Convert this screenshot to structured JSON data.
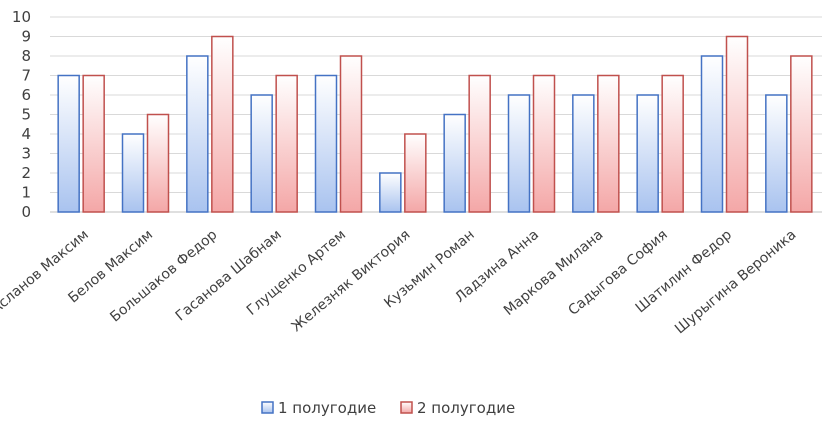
{
  "chart_data": {
    "type": "bar",
    "categories": [
      "Асланов Максим",
      "Белов Максим",
      "Большаков Федор",
      "Гасанова Шабнам",
      "Глущенко Артем",
      "Железняк Виктория",
      "Кузьмин Роман",
      "Ладзина Анна",
      "Маркова Милана",
      "Садыгова София",
      "Шатилин Федор",
      "Шурыгина Вероника"
    ],
    "series": [
      {
        "name": "1 полугодие",
        "values": [
          7,
          4,
          8,
          6,
          7,
          2,
          5,
          6,
          6,
          6,
          8,
          6
        ]
      },
      {
        "name": "2 полугодие",
        "values": [
          7,
          5,
          9,
          7,
          8,
          4,
          7,
          7,
          7,
          7,
          9,
          8
        ]
      }
    ],
    "y_ticks": [
      "0",
      "1",
      "2",
      "3",
      "4",
      "5",
      "6",
      "7",
      "8",
      "9",
      "10"
    ],
    "ylim": [
      0,
      10
    ],
    "grid": true,
    "legend_position": "bottom",
    "colors": {
      "series1_fill_top": "#ffffff",
      "series1_fill_bottom": "#a9c3ef",
      "series1_stroke": "#4472c4",
      "series2_fill_top": "#ffffff",
      "series2_fill_bottom": "#f4a7a7",
      "series2_stroke": "#c0504d",
      "grid": "#d9d9d9",
      "axis": "#bfbfbf"
    }
  }
}
